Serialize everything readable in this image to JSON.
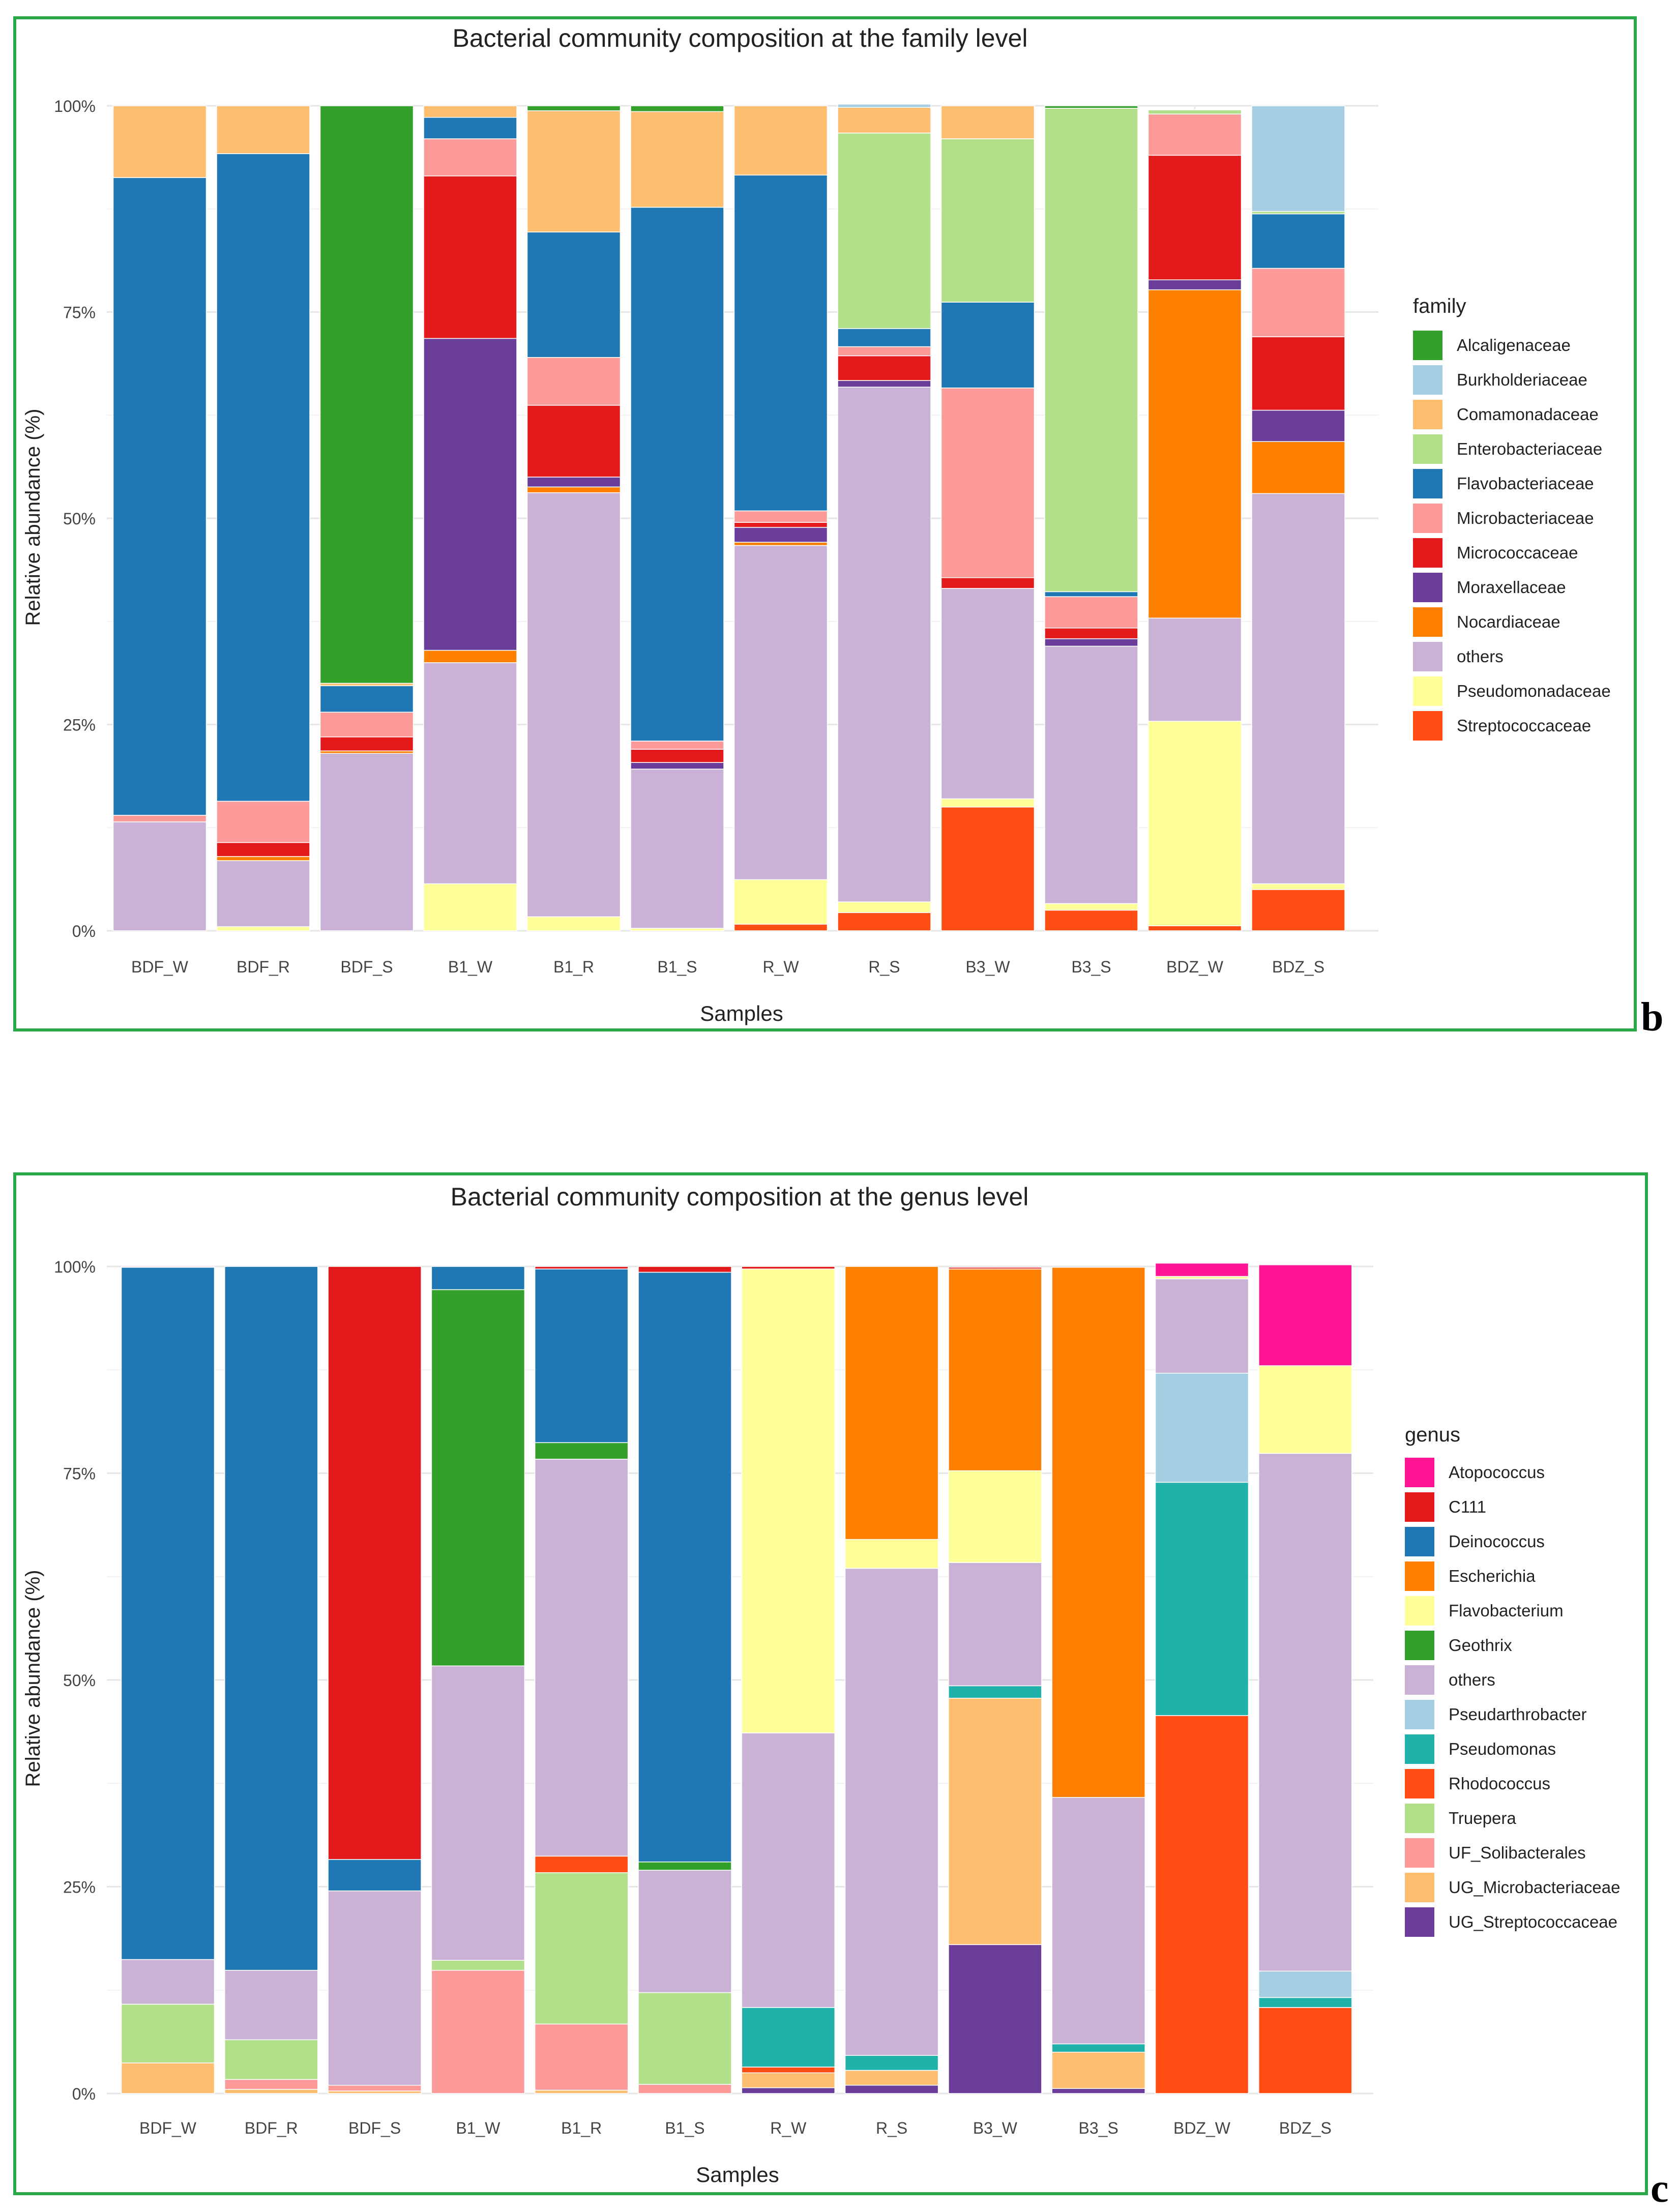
{
  "charts": [
    {
      "title": "Bacterial community composition at the family level",
      "xlabel": "Samples",
      "ylabel": "Relative abundance (%)",
      "ytick_labels": [
        "0%",
        "25%",
        "50%",
        "75%",
        "100%"
      ],
      "legend_title": "family",
      "panel_letter": "b",
      "chart_data": {
        "type": "bar",
        "stacked": true,
        "title": "Bacterial community composition at the family level",
        "xlabel": "Samples",
        "ylabel": "Relative abundance (%)",
        "ylim": [
          0,
          100
        ],
        "grid": true,
        "legend_position": "right",
        "categories": [
          "BDF_W",
          "BDF_R",
          "BDF_S",
          "B1_W",
          "B1_R",
          "B1_S",
          "R_W",
          "R_S",
          "B3_W",
          "B3_S",
          "BDZ_W",
          "BDZ_S"
        ],
        "stack_order": [
          "Streptococcaceae",
          "Pseudomonadaceae",
          "others",
          "Nocardiaceae",
          "Moraxellaceae",
          "Micrococcaceae",
          "Microbacteriaceae",
          "Flavobacteriaceae",
          "Enterobacteriaceae",
          "Comamonadaceae",
          "Burkholderiaceae",
          "Alcaligenaceae"
        ],
        "legend_order": [
          "Alcaligenaceae",
          "Burkholderiaceae",
          "Comamonadaceae",
          "Enterobacteriaceae",
          "Flavobacteriaceae",
          "Microbacteriaceae",
          "Micrococcaceae",
          "Moraxellaceae",
          "Nocardiaceae",
          "others",
          "Pseudomonadaceae",
          "Streptococcaceae"
        ],
        "colors": {
          "Alcaligenaceae": "#33a02c",
          "Burkholderiaceae": "#a6cee3",
          "Comamonadaceae": "#fdbf6f",
          "Enterobacteriaceae": "#b2df8a",
          "Flavobacteriaceae": "#1f78b4",
          "Microbacteriaceae": "#fb9a99",
          "Micrococcaceae": "#e31a1c",
          "Moraxellaceae": "#6a3d9a",
          "Nocardiaceae": "#ff7f00",
          "others": "#cab2d6",
          "Pseudomonadaceae": "#ffff99",
          "Streptococcaceae": "#ff4d14"
        },
        "series": [
          {
            "name": "Streptococcaceae",
            "values": [
              0,
              0,
              0,
              0,
              0,
              0,
              0.8,
              2.2,
              15,
              2.5,
              0.6,
              5
            ]
          },
          {
            "name": "Pseudomonadaceae",
            "values": [
              0,
              0.5,
              0,
              5.7,
              1.7,
              0.3,
              5.4,
              1.3,
              1,
              0.8,
              24.8,
              0.7
            ]
          },
          {
            "name": "others",
            "values": [
              13.2,
              8,
              21.5,
              26.8,
              51.4,
              19.3,
              40.5,
              62.4,
              25.5,
              31.2,
              12.5,
              47.3
            ]
          },
          {
            "name": "Nocardiaceae",
            "values": [
              0,
              0.5,
              0.3,
              1.5,
              0.7,
              0,
              0.4,
              0,
              0,
              0,
              39.8,
              6.3
            ]
          },
          {
            "name": "Moraxellaceae",
            "values": [
              0,
              0,
              0,
              37.8,
              1.2,
              0.8,
              1.8,
              0.8,
              0,
              0.9,
              1.2,
              3.8
            ]
          },
          {
            "name": "Micrococcaceae",
            "values": [
              0,
              1.7,
              1.7,
              19.7,
              8.7,
              1.6,
              0.6,
              3,
              1.3,
              1.3,
              15.1,
              8.9
            ]
          },
          {
            "name": "Microbacteriaceae",
            "values": [
              0.8,
              5,
              3,
              4.5,
              5.8,
              1,
              1.4,
              1.1,
              23,
              3.8,
              5,
              8.3
            ]
          },
          {
            "name": "Flavobacteriaceae",
            "values": [
              77.3,
              78.5,
              3.2,
              2.6,
              15.2,
              64.7,
              40.7,
              2.2,
              10.4,
              0.6,
              0,
              6.6
            ]
          },
          {
            "name": "Enterobacteriaceae",
            "values": [
              0,
              0,
              0,
              0,
              0,
              0,
              0,
              23.7,
              19.8,
              58.6,
              0.5,
              0.3
            ]
          },
          {
            "name": "Comamonadaceae",
            "values": [
              8.7,
              5.8,
              0.3,
              1.4,
              14.7,
              11.6,
              8.4,
              3.1,
              4,
              0,
              0,
              0
            ]
          },
          {
            "name": "Burkholderiaceae",
            "values": [
              0,
              0,
              0,
              0,
              0,
              0,
              0,
              0.4,
              0,
              0,
              0,
              12.8
            ]
          },
          {
            "name": "Alcaligenaceae",
            "values": [
              0,
              0,
              70,
              0,
              0.6,
              0.7,
              0,
              0,
              0,
              0.3,
              0,
              0
            ]
          }
        ]
      }
    },
    {
      "title": "Bacterial community composition at the genus level",
      "xlabel": "Samples",
      "ylabel": "Relative abundance (%)",
      "ytick_labels": [
        "0%",
        "25%",
        "50%",
        "75%",
        "100%"
      ],
      "legend_title": "genus",
      "panel_letter": "c",
      "chart_data": {
        "type": "bar",
        "stacked": true,
        "title": "Bacterial community composition at the genus level",
        "xlabel": "Samples",
        "ylabel": "Relative abundance (%)",
        "ylim": [
          0,
          100
        ],
        "grid": true,
        "legend_position": "right",
        "categories": [
          "BDF_W",
          "BDF_R",
          "BDF_S",
          "B1_W",
          "B1_R",
          "B1_S",
          "R_W",
          "R_S",
          "B3_W",
          "B3_S",
          "BDZ_W",
          "BDZ_S"
        ],
        "stack_order": [
          "UG_Streptococcaceae",
          "UG_Microbacteriaceae",
          "UF_Solibacterales",
          "Truepera",
          "Rhodococcus",
          "Pseudomonas",
          "Pseudarthrobacter",
          "others",
          "Geothrix",
          "Flavobacterium",
          "Escherichia",
          "Deinococcus",
          "C111",
          "Atopococcus"
        ],
        "legend_order": [
          "Atopococcus",
          "C111",
          "Deinococcus",
          "Escherichia",
          "Flavobacterium",
          "Geothrix",
          "others",
          "Pseudarthrobacter",
          "Pseudomonas",
          "Rhodococcus",
          "Truepera",
          "UF_Solibacterales",
          "UG_Microbacteriaceae",
          "UG_Streptococcaceae"
        ],
        "colors": {
          "Atopococcus": "#ff1493",
          "C111": "#e31a1c",
          "Deinococcus": "#1f78b4",
          "Escherichia": "#ff7f00",
          "Flavobacterium": "#ffff99",
          "Geothrix": "#33a02c",
          "others": "#cab2d6",
          "Pseudarthrobacter": "#a6cee3",
          "Pseudomonas": "#20b2aa",
          "Rhodococcus": "#ff4d14",
          "Truepera": "#b2df8a",
          "UF_Solibacterales": "#fb9a99",
          "UG_Microbacteriaceae": "#fdbf6f",
          "UG_Streptococcaceae": "#6a3d9a"
        },
        "series": [
          {
            "name": "UG_Streptococcaceae",
            "values": [
              0,
              0,
              0,
              0,
              0,
              0,
              0.7,
              1,
              18,
              0.6,
              0,
              0
            ]
          },
          {
            "name": "UG_Microbacteriaceae",
            "values": [
              3.7,
              0.5,
              0.3,
              0,
              0.4,
              0,
              1.8,
              1.8,
              29.8,
              4.4,
              0,
              0
            ]
          },
          {
            "name": "UF_Solibacterales",
            "values": [
              0,
              1.2,
              0.7,
              14.9,
              8,
              1.1,
              0,
              0,
              0,
              0,
              0,
              0
            ]
          },
          {
            "name": "Truepera",
            "values": [
              7.1,
              4.8,
              0,
              1.2,
              18.3,
              11.1,
              0,
              0,
              0,
              0,
              0,
              0
            ]
          },
          {
            "name": "Rhodococcus",
            "values": [
              0,
              0,
              0,
              0,
              2,
              0,
              0.7,
              0,
              0,
              0,
              45.7,
              10.4
            ]
          },
          {
            "name": "Pseudomonas",
            "values": [
              0,
              0,
              0,
              0,
              0,
              0,
              7.2,
              1.8,
              1.5,
              1,
              28.2,
              1.2
            ]
          },
          {
            "name": "Pseudarthrobacter",
            "values": [
              0,
              0,
              0,
              0,
              0,
              0,
              0,
              0,
              0,
              0,
              13.2,
              3.2
            ]
          },
          {
            "name": "others",
            "values": [
              5.4,
              8.4,
              23.5,
              35.6,
              48,
              14.8,
              33.2,
              58.9,
              14.9,
              29.8,
              11.4,
              62.6
            ]
          },
          {
            "name": "Geothrix",
            "values": [
              0,
              0,
              0,
              45.5,
              2,
              1,
              0,
              0,
              0,
              0,
              0,
              0
            ]
          },
          {
            "name": "Flavobacterium",
            "values": [
              0,
              0,
              0,
              0,
              0,
              0,
              56.1,
              3.5,
              11.1,
              0,
              0.3,
              10.6
            ]
          },
          {
            "name": "Escherichia",
            "values": [
              0,
              0,
              0,
              0,
              0,
              0,
              0,
              33,
              24.4,
              64.1,
              0,
              0
            ]
          },
          {
            "name": "Deinococcus",
            "values": [
              83.7,
              85.1,
              3.8,
              2.8,
              21,
              71.3,
              0,
              0,
              0,
              0,
              0,
              0
            ]
          },
          {
            "name": "C111",
            "values": [
              0.1,
              0,
              71.7,
              0,
              0.3,
              0.7,
              0.3,
              0,
              0.2,
              0,
              0,
              0
            ]
          },
          {
            "name": "Atopococcus",
            "values": [
              0,
              0,
              0,
              0,
              0,
              0,
              0,
              0,
              0,
              0,
              1.6,
              12.2
            ]
          }
        ]
      }
    }
  ]
}
